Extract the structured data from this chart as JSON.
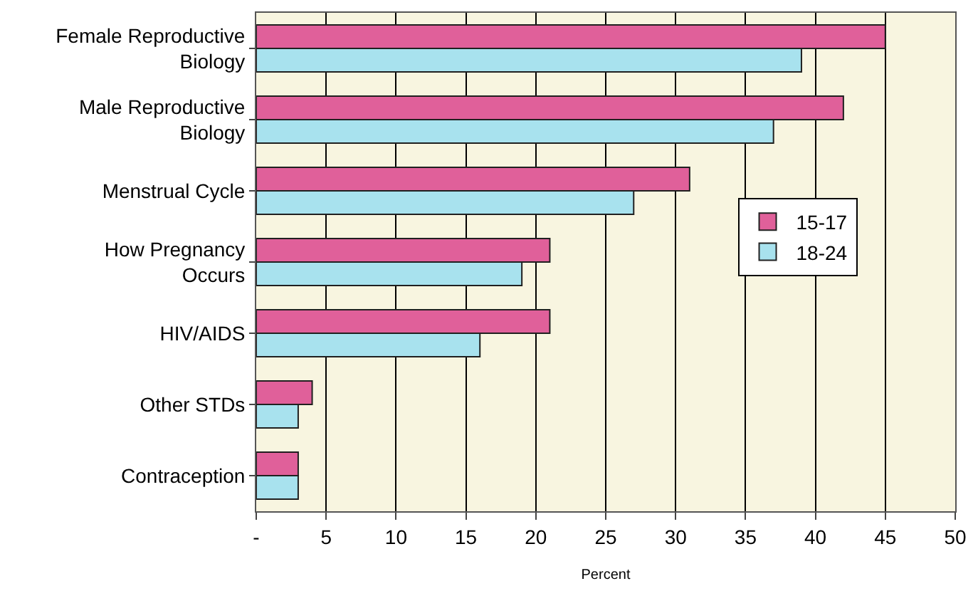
{
  "chart_data": {
    "type": "bar",
    "orientation": "horizontal",
    "xlabel": "Percent",
    "categories": [
      "Female Reproductive Biology",
      "Male Reproductive Biology",
      "Menstrual Cycle",
      "How Pregnancy Occurs",
      "HIV/AIDS",
      "Other STDs",
      "Contraception"
    ],
    "series": [
      {
        "name": "15-17",
        "color": "#e0609a",
        "values": [
          45,
          42,
          31,
          21,
          21,
          4,
          3
        ]
      },
      {
        "name": "18-24",
        "color": "#a8e2ee",
        "values": [
          39,
          37,
          27,
          19,
          16,
          3,
          3
        ]
      }
    ],
    "xlim": [
      0,
      50
    ],
    "xticks": [
      {
        "value": 0,
        "label": "-"
      },
      5,
      10,
      15,
      20,
      25,
      30,
      35,
      40,
      45,
      50
    ],
    "grid": "x",
    "legend": "right"
  }
}
